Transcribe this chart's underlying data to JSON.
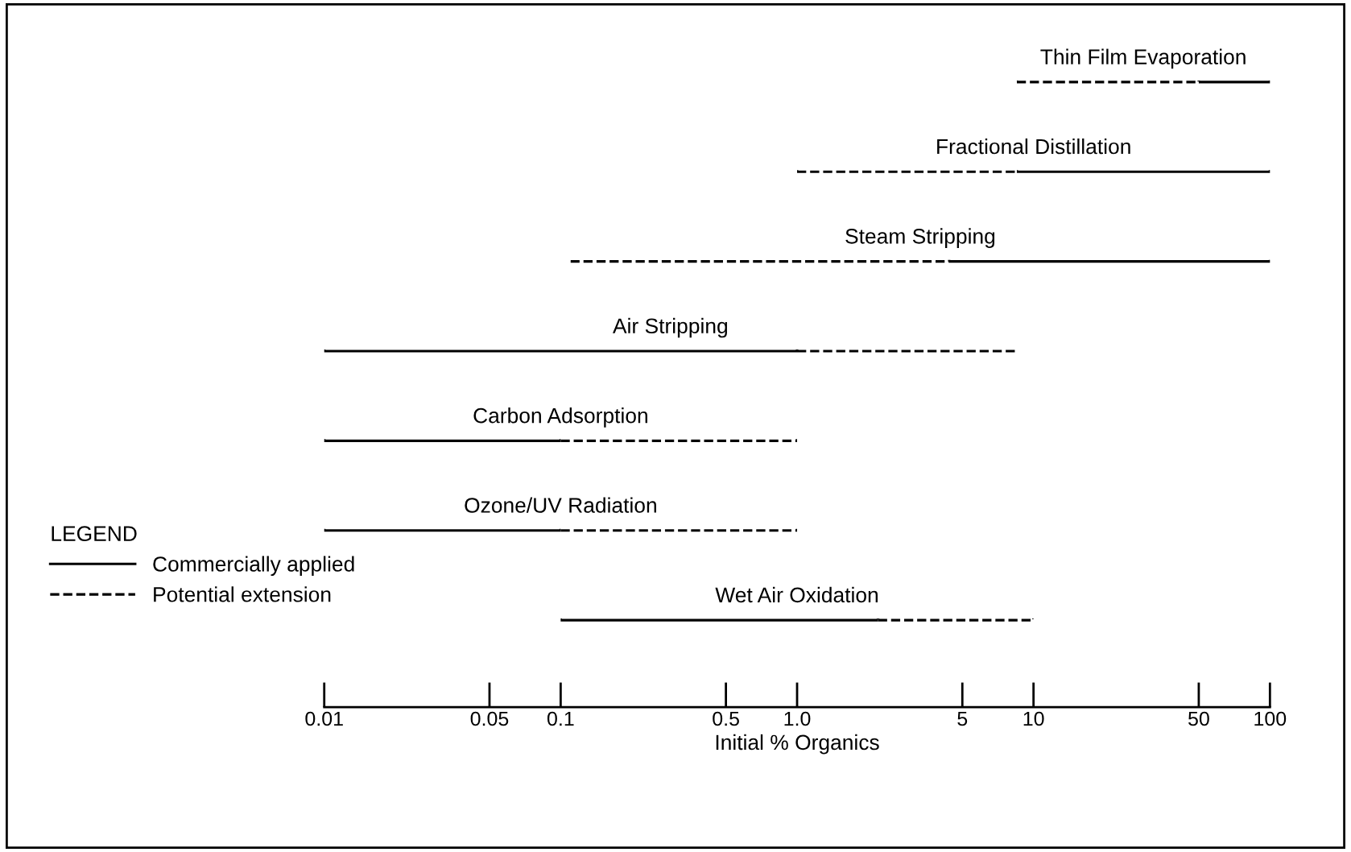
{
  "chart_data": {
    "type": "bar",
    "orientation": "horizontal",
    "log": "x",
    "xlabel": "Initial % Organics",
    "categories": [
      "Thin Film Evaporation",
      "Fractional Distillation",
      "Steam Stripping",
      "Air Stripping",
      "Carbon Adsorption",
      "Ozone/UV Radiation",
      "Wet Air Oxidation"
    ],
    "series": [
      {
        "name": "Commercially applied",
        "color": "#000000",
        "line_style": "solid",
        "base": [
          50,
          8.5,
          4.4,
          0.01,
          0.01,
          0.01,
          0.1
        ],
        "values": [
          50,
          91.5,
          95.6,
          0.99,
          0.09,
          0.09,
          2.1
        ]
      },
      {
        "name": "Potential extension",
        "color": "#000000",
        "line_style": "dashed",
        "base": [
          8.5,
          1,
          0.11,
          1,
          0.1,
          0.1,
          2.2
        ],
        "values": [
          41.5,
          7.5,
          4.29,
          7.5,
          0.9,
          0.9,
          7.8
        ]
      }
    ],
    "xlim": [
      0.01,
      100
    ],
    "xticks": [
      0.01,
      0.05,
      0.1,
      0.5,
      {
        "value": 1,
        "label": "1.0"
      },
      5,
      10,
      50,
      100
    ],
    "tick_labels": "x",
    "grid": false,
    "legend": "bottom left",
    "legend_title": "LEGEND"
  }
}
